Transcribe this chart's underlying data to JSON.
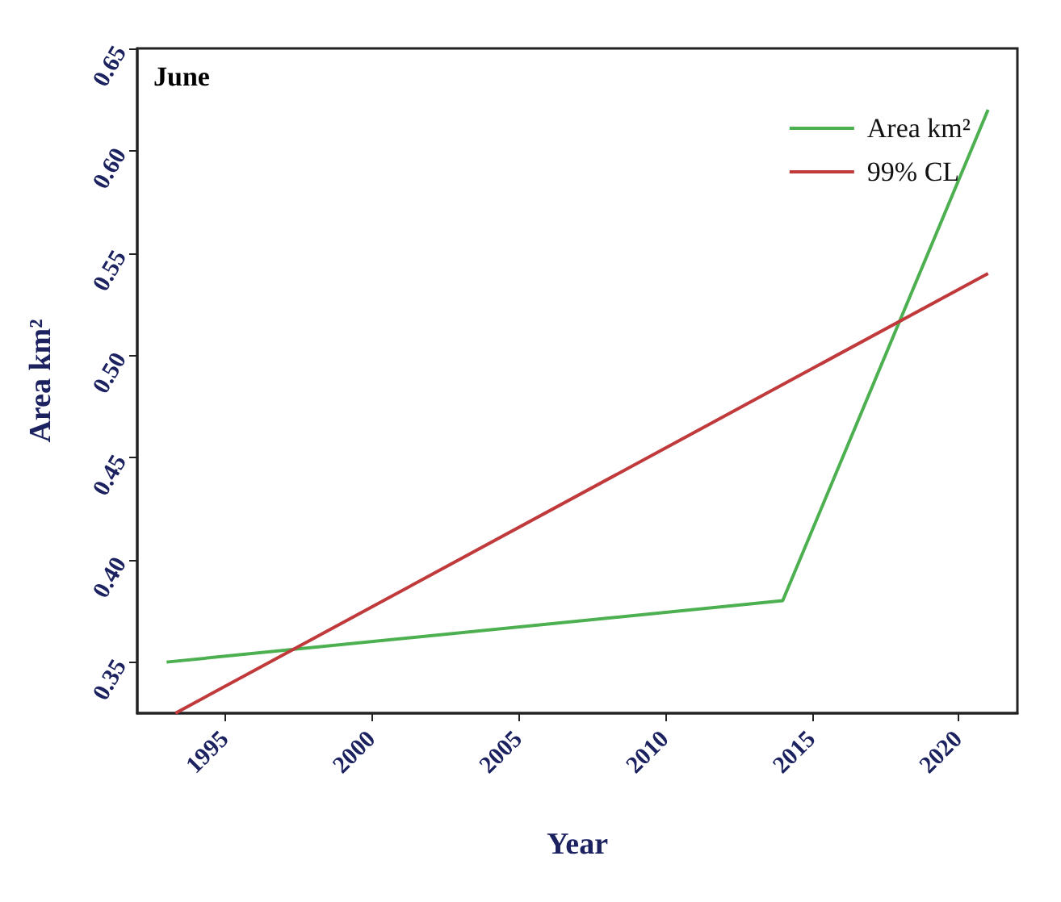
{
  "chart_data": {
    "type": "line",
    "title": "June",
    "xlabel": "Year",
    "ylabel": "Area km²",
    "xlim": [
      1992,
      2022
    ],
    "xticks": [
      1995,
      2000,
      2005,
      2010,
      2015,
      2020
    ],
    "ylim": [
      0.325,
      0.65
    ],
    "yticks": [
      0.35,
      {
        "value": 0.4,
        "label": "0.40"
      },
      0.45,
      {
        "value": 0.5,
        "label": "0.50"
      },
      0.55,
      {
        "value": 0.6,
        "label": "0.60"
      },
      0.65
    ],
    "legend": "top right",
    "marker": "none",
    "line_style": "solid",
    "series": [
      {
        "name": "Area km²",
        "color": "#4caf50",
        "x": [
          1993,
          2014,
          2021
        ],
        "values": [
          0.35,
          0.38,
          0.62
        ]
      },
      {
        "name": "99% CL",
        "color": "#c0393b",
        "x": [
          1993.3,
          2021
        ],
        "values": [
          0.325,
          0.54
        ]
      }
    ]
  }
}
